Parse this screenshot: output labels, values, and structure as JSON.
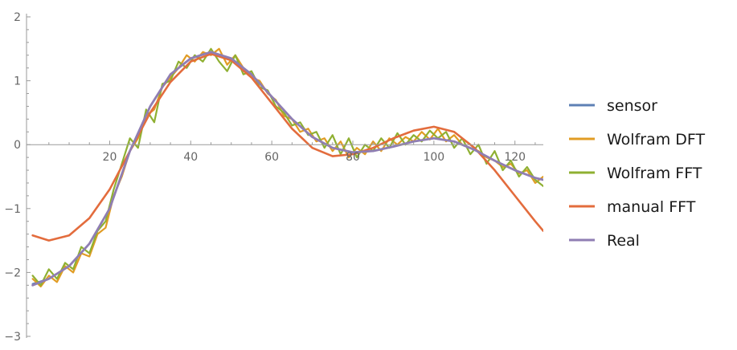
{
  "chart_data": {
    "type": "line",
    "title": "",
    "xlabel": "",
    "ylabel": "",
    "xlim": [
      0,
      127
    ],
    "ylim": [
      -3,
      2
    ],
    "x_ticks": [
      20,
      40,
      60,
      80,
      100,
      120
    ],
    "x_tick_labels": [
      "20",
      "40",
      "60",
      "80",
      "100",
      "120"
    ],
    "y_ticks": [
      -3,
      -2,
      -1,
      0,
      1,
      2
    ],
    "y_tick_labels": [
      "−3",
      "−2",
      "−1",
      "0",
      "1",
      "2"
    ],
    "grid": false,
    "legend": {
      "position": "right"
    },
    "series": [
      {
        "name": "sensor",
        "color": "#5E81B5",
        "points": [
          [
            1,
            -2.18
          ],
          [
            5,
            -2.1
          ],
          [
            10,
            -1.9
          ],
          [
            15,
            -1.55
          ],
          [
            20,
            -1.0
          ],
          [
            25,
            -0.1
          ],
          [
            30,
            0.6
          ],
          [
            35,
            1.1
          ],
          [
            40,
            1.35
          ],
          [
            45,
            1.45
          ],
          [
            50,
            1.35
          ],
          [
            55,
            1.1
          ],
          [
            60,
            0.75
          ],
          [
            65,
            0.4
          ],
          [
            70,
            0.12
          ],
          [
            75,
            -0.05
          ],
          [
            80,
            -0.12
          ],
          [
            85,
            -0.1
          ],
          [
            90,
            -0.03
          ],
          [
            95,
            0.05
          ],
          [
            100,
            0.1
          ],
          [
            105,
            0.05
          ],
          [
            110,
            -0.08
          ],
          [
            115,
            -0.25
          ],
          [
            120,
            -0.4
          ],
          [
            125,
            -0.52
          ],
          [
            127,
            -0.55
          ]
        ]
      },
      {
        "name": "Wolfram DFT",
        "color": "#E19C24",
        "points": [
          [
            1,
            -2.1
          ],
          [
            3,
            -2.22
          ],
          [
            5,
            -2.05
          ],
          [
            7,
            -2.15
          ],
          [
            9,
            -1.9
          ],
          [
            11,
            -2.0
          ],
          [
            13,
            -1.7
          ],
          [
            15,
            -1.75
          ],
          [
            17,
            -1.4
          ],
          [
            19,
            -1.3
          ],
          [
            21,
            -0.8
          ],
          [
            23,
            -0.5
          ],
          [
            25,
            -0.1
          ],
          [
            27,
            0.1
          ],
          [
            29,
            0.45
          ],
          [
            31,
            0.55
          ],
          [
            33,
            0.9
          ],
          [
            35,
            1.05
          ],
          [
            37,
            1.2
          ],
          [
            39,
            1.4
          ],
          [
            41,
            1.3
          ],
          [
            43,
            1.45
          ],
          [
            45,
            1.4
          ],
          [
            47,
            1.5
          ],
          [
            49,
            1.25
          ],
          [
            51,
            1.4
          ],
          [
            53,
            1.2
          ],
          [
            55,
            1.05
          ],
          [
            57,
            1.0
          ],
          [
            59,
            0.8
          ],
          [
            61,
            0.7
          ],
          [
            63,
            0.45
          ],
          [
            65,
            0.4
          ],
          [
            67,
            0.2
          ],
          [
            69,
            0.25
          ],
          [
            71,
            0.05
          ],
          [
            73,
            0.1
          ],
          [
            75,
            -0.1
          ],
          [
            77,
            0.05
          ],
          [
            79,
            -0.2
          ],
          [
            81,
            -0.05
          ],
          [
            83,
            -0.15
          ],
          [
            85,
            0.05
          ],
          [
            87,
            -0.1
          ],
          [
            89,
            0.1
          ],
          [
            91,
            0.0
          ],
          [
            93,
            0.12
          ],
          [
            95,
            0.05
          ],
          [
            97,
            0.2
          ],
          [
            99,
            0.08
          ],
          [
            101,
            0.25
          ],
          [
            103,
            0.05
          ],
          [
            105,
            0.15
          ],
          [
            107,
            0.0
          ],
          [
            109,
            -0.05
          ],
          [
            111,
            -0.1
          ],
          [
            113,
            -0.2
          ],
          [
            115,
            -0.25
          ],
          [
            117,
            -0.35
          ],
          [
            119,
            -0.3
          ],
          [
            121,
            -0.45
          ],
          [
            123,
            -0.4
          ],
          [
            125,
            -0.6
          ],
          [
            127,
            -0.5
          ]
        ]
      },
      {
        "name": "Wolfram FFT",
        "color": "#8FB032",
        "points": [
          [
            1,
            -2.05
          ],
          [
            3,
            -2.2
          ],
          [
            5,
            -1.95
          ],
          [
            7,
            -2.1
          ],
          [
            9,
            -1.85
          ],
          [
            11,
            -1.95
          ],
          [
            13,
            -1.6
          ],
          [
            15,
            -1.7
          ],
          [
            17,
            -1.35
          ],
          [
            19,
            -1.2
          ],
          [
            21,
            -0.7
          ],
          [
            23,
            -0.3
          ],
          [
            25,
            0.1
          ],
          [
            27,
            -0.05
          ],
          [
            29,
            0.55
          ],
          [
            31,
            0.35
          ],
          [
            33,
            0.95
          ],
          [
            35,
            1.0
          ],
          [
            37,
            1.3
          ],
          [
            39,
            1.2
          ],
          [
            41,
            1.4
          ],
          [
            43,
            1.3
          ],
          [
            45,
            1.5
          ],
          [
            47,
            1.3
          ],
          [
            49,
            1.15
          ],
          [
            51,
            1.4
          ],
          [
            53,
            1.1
          ],
          [
            55,
            1.15
          ],
          [
            57,
            0.9
          ],
          [
            59,
            0.85
          ],
          [
            61,
            0.6
          ],
          [
            63,
            0.5
          ],
          [
            65,
            0.3
          ],
          [
            67,
            0.35
          ],
          [
            69,
            0.15
          ],
          [
            71,
            0.2
          ],
          [
            73,
            -0.05
          ],
          [
            75,
            0.15
          ],
          [
            77,
            -0.15
          ],
          [
            79,
            0.1
          ],
          [
            81,
            -0.2
          ],
          [
            83,
            0.0
          ],
          [
            85,
            -0.1
          ],
          [
            87,
            0.1
          ],
          [
            89,
            -0.05
          ],
          [
            91,
            0.18
          ],
          [
            93,
            0.0
          ],
          [
            95,
            0.15
          ],
          [
            97,
            0.05
          ],
          [
            99,
            0.22
          ],
          [
            101,
            0.1
          ],
          [
            103,
            0.2
          ],
          [
            105,
            -0.05
          ],
          [
            107,
            0.1
          ],
          [
            109,
            -0.15
          ],
          [
            111,
            0.0
          ],
          [
            113,
            -0.3
          ],
          [
            115,
            -0.1
          ],
          [
            117,
            -0.4
          ],
          [
            119,
            -0.25
          ],
          [
            121,
            -0.5
          ],
          [
            123,
            -0.35
          ],
          [
            125,
            -0.55
          ],
          [
            127,
            -0.65
          ]
        ]
      },
      {
        "name": "manual FFT",
        "color": "#E36C3D",
        "points": [
          [
            1,
            -1.42
          ],
          [
            5,
            -1.5
          ],
          [
            10,
            -1.42
          ],
          [
            15,
            -1.15
          ],
          [
            20,
            -0.7
          ],
          [
            25,
            -0.1
          ],
          [
            30,
            0.5
          ],
          [
            35,
            0.98
          ],
          [
            40,
            1.3
          ],
          [
            45,
            1.42
          ],
          [
            50,
            1.32
          ],
          [
            55,
            1.05
          ],
          [
            60,
            0.65
          ],
          [
            65,
            0.25
          ],
          [
            70,
            -0.05
          ],
          [
            75,
            -0.18
          ],
          [
            80,
            -0.15
          ],
          [
            85,
            -0.05
          ],
          [
            90,
            0.1
          ],
          [
            95,
            0.22
          ],
          [
            100,
            0.28
          ],
          [
            105,
            0.2
          ],
          [
            110,
            -0.05
          ],
          [
            115,
            -0.4
          ],
          [
            120,
            -0.8
          ],
          [
            125,
            -1.2
          ],
          [
            127,
            -1.35
          ]
        ]
      },
      {
        "name": "Real",
        "color": "#8F7EB3",
        "points": [
          [
            1,
            -2.2
          ],
          [
            5,
            -2.1
          ],
          [
            10,
            -1.9
          ],
          [
            15,
            -1.55
          ],
          [
            20,
            -1.0
          ],
          [
            25,
            -0.1
          ],
          [
            30,
            0.6
          ],
          [
            35,
            1.1
          ],
          [
            40,
            1.35
          ],
          [
            45,
            1.45
          ],
          [
            50,
            1.35
          ],
          [
            55,
            1.1
          ],
          [
            60,
            0.75
          ],
          [
            65,
            0.4
          ],
          [
            70,
            0.12
          ],
          [
            75,
            -0.05
          ],
          [
            80,
            -0.12
          ],
          [
            85,
            -0.1
          ],
          [
            90,
            -0.03
          ],
          [
            95,
            0.05
          ],
          [
            100,
            0.1
          ],
          [
            105,
            0.05
          ],
          [
            110,
            -0.08
          ],
          [
            115,
            -0.25
          ],
          [
            120,
            -0.4
          ],
          [
            125,
            -0.52
          ],
          [
            127,
            -0.55
          ]
        ]
      }
    ]
  }
}
